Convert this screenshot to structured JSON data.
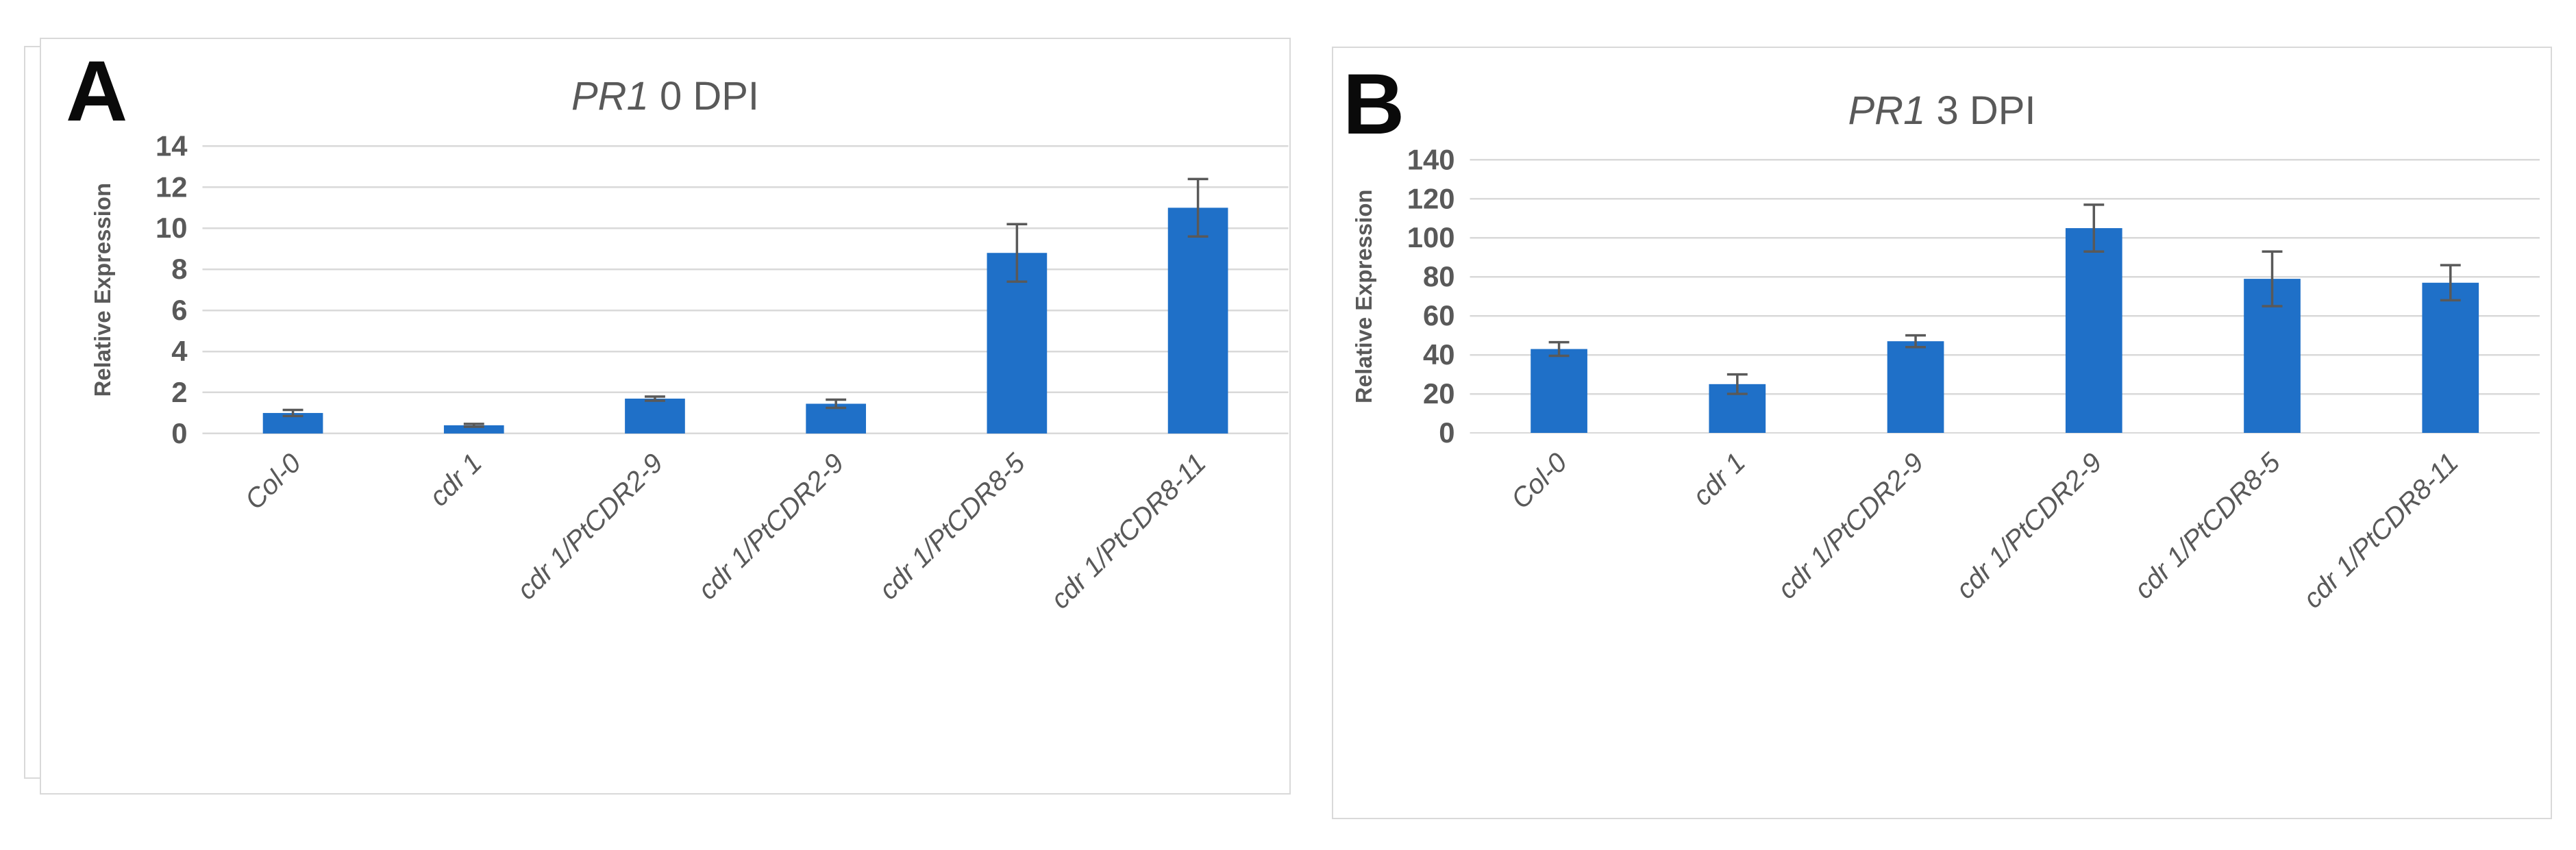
{
  "figure": {
    "type": "two-panel bar chart figure",
    "background": "#ffffff"
  },
  "colors": {
    "bar_fill": "#1f70c8",
    "gridline": "#d9d9d9",
    "axis_text": "#595959",
    "error_bar": "#595959",
    "panel_border": "#d9d9d9",
    "panel_letter": "#0a0a0a",
    "title_text": "#595959"
  },
  "panels": [
    {
      "label": "A",
      "title_gene": "PR1",
      "title_rest": " 0 DPI",
      "ylabel": "Relative Expression"
    },
    {
      "label": "B",
      "title_gene": "PR1",
      "title_rest": " 3 DPI",
      "ylabel": "Relative Expression"
    }
  ],
  "chart_data": [
    {
      "type": "bar",
      "title": "PR1 0 DPI",
      "title_italic_part": "PR1",
      "categories": [
        "Col-0",
        "cdr 1",
        "cdr 1/PtCDR2-9",
        "cdr 1/PtCDR2-9",
        "cdr 1/PtCDR8-5",
        "cdr 1/PtCDR8-11"
      ],
      "values": [
        1.0,
        0.4,
        1.7,
        1.45,
        8.8,
        11.0
      ],
      "errors": [
        0.15,
        0.07,
        0.1,
        0.2,
        1.4,
        1.4
      ],
      "xlabel": "",
      "ylabel": "Relative Expression",
      "ylim": [
        0,
        14
      ],
      "yticks": [
        0,
        2,
        4,
        6,
        8,
        10,
        12,
        14
      ],
      "grid": true,
      "legend": "none",
      "bar_color": "#1f70c8"
    },
    {
      "type": "bar",
      "title": "PR1 3 DPI",
      "title_italic_part": "PR1",
      "categories": [
        "Col-0",
        "cdr 1",
        "cdr 1/PtCDR2-9",
        "cdr 1/PtCDR2-9",
        "cdr 1/PtCDR8-5",
        "cdr 1/PtCDR8-11"
      ],
      "values": [
        43,
        25,
        47,
        105,
        79,
        77
      ],
      "errors": [
        3.5,
        5,
        3,
        12,
        14,
        9
      ],
      "xlabel": "",
      "ylabel": "Relative Expression",
      "ylim": [
        0,
        140
      ],
      "yticks": [
        0,
        20,
        40,
        60,
        80,
        100,
        120,
        140
      ],
      "grid": true,
      "legend": "none",
      "bar_color": "#1f70c8"
    }
  ]
}
